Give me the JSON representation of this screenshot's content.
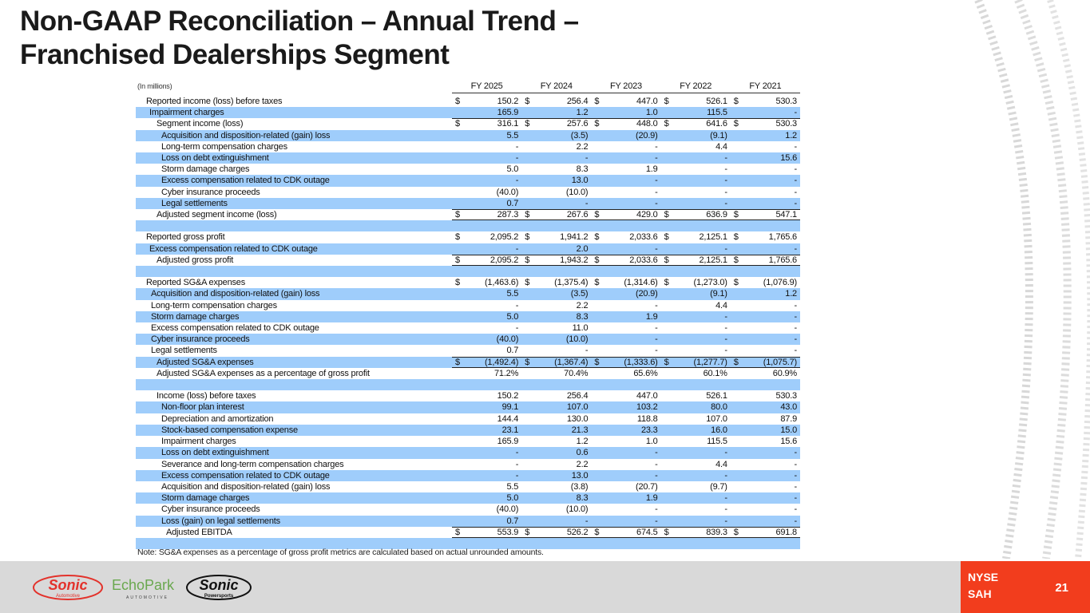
{
  "title_line1": "Non-GAAP Reconciliation – Annual Trend –",
  "title_line2": "Franchised Dealerships Segment",
  "table": {
    "unit_label": "(In millions)",
    "columns": [
      "FY 2025",
      "FY 2024",
      "FY 2023",
      "FY 2022",
      "FY 2021"
    ],
    "rows": [
      {
        "label": "Reported income (loss) before taxes",
        "currency": "$",
        "values": [
          "150.2",
          "256.4",
          "447.0",
          "526.1",
          "530.3"
        ]
      },
      {
        "label": "Impairment charges",
        "currency": "",
        "values": [
          "165.9",
          "1.2",
          "1.0",
          "115.5",
          "-"
        ]
      },
      {
        "label": "Segment income (loss)",
        "currency": "$",
        "values": [
          "316.1",
          "257.6",
          "448.0",
          "641.6",
          "530.3"
        ]
      },
      {
        "label": "Acquisition and disposition-related (gain) loss",
        "currency": "",
        "values": [
          "5.5",
          "(3.5)",
          "(20.9)",
          "(9.1)",
          "1.2"
        ]
      },
      {
        "label": "Long-term compensation charges",
        "currency": "",
        "values": [
          "-",
          "2.2",
          "-",
          "4.4",
          "-"
        ]
      },
      {
        "label": "Loss on debt extinguishment",
        "currency": "",
        "values": [
          "-",
          "-",
          "-",
          "-",
          "15.6"
        ]
      },
      {
        "label": "Storm damage charges",
        "currency": "",
        "values": [
          "5.0",
          "8.3",
          "1.9",
          "-",
          "-"
        ]
      },
      {
        "label": "Excess compensation related to CDK outage",
        "currency": "",
        "values": [
          "-",
          "13.0",
          "-",
          "-",
          "-"
        ]
      },
      {
        "label": "Cyber insurance proceeds",
        "currency": "",
        "values": [
          "(40.0)",
          "(10.0)",
          "-",
          "-",
          "-"
        ]
      },
      {
        "label": "Legal settlements",
        "currency": "",
        "values": [
          "0.7",
          "-",
          "-",
          "-",
          "-"
        ]
      },
      {
        "label": "Adjusted segment income (loss)",
        "currency": "$",
        "values": [
          "287.3",
          "267.6",
          "429.0",
          "636.9",
          "547.1"
        ]
      },
      {
        "label": "",
        "currency": "",
        "values": [
          "",
          "",
          "",
          "",
          ""
        ]
      },
      {
        "label": "Reported gross profit",
        "currency": "$",
        "values": [
          "2,095.2",
          "1,941.2",
          "2,033.6",
          "2,125.1",
          "1,765.6"
        ]
      },
      {
        "label": "Excess compensation related to CDK outage",
        "currency": "",
        "values": [
          "-",
          "2.0",
          "-",
          "-",
          "-"
        ]
      },
      {
        "label": "Adjusted gross profit",
        "currency": "$",
        "values": [
          "2,095.2",
          "1,943.2",
          "2,033.6",
          "2,125.1",
          "1,765.6"
        ]
      },
      {
        "label": "",
        "currency": "",
        "values": [
          "",
          "",
          "",
          "",
          ""
        ]
      },
      {
        "label": "Reported SG&A expenses",
        "currency": "$",
        "values": [
          "(1,463.6)",
          "(1,375.4)",
          "(1,314.6)",
          "(1,273.0)",
          "(1,076.9)"
        ]
      },
      {
        "label": "Acquisition and disposition-related (gain) loss",
        "currency": "",
        "values": [
          "5.5",
          "(3.5)",
          "(20.9)",
          "(9.1)",
          "1.2"
        ]
      },
      {
        "label": "Long-term compensation charges",
        "currency": "",
        "values": [
          "-",
          "2.2",
          "-",
          "4.4",
          "-"
        ]
      },
      {
        "label": "Storm damage charges",
        "currency": "",
        "values": [
          "5.0",
          "8.3",
          "1.9",
          "-",
          "-"
        ]
      },
      {
        "label": "Excess compensation related to CDK outage",
        "currency": "",
        "values": [
          "-",
          "11.0",
          "-",
          "-",
          "-"
        ]
      },
      {
        "label": "Cyber insurance proceeds",
        "currency": "",
        "values": [
          "(40.0)",
          "(10.0)",
          "-",
          "-",
          "-"
        ]
      },
      {
        "label": "Legal settlements",
        "currency": "",
        "values": [
          "0.7",
          "-",
          "-",
          "-",
          "-"
        ]
      },
      {
        "label": "Adjusted SG&A expenses",
        "currency": "$",
        "values": [
          "(1,492.4)",
          "(1,367.4)",
          "(1,333.6)",
          "(1,277.7)",
          "(1,075.7)"
        ]
      },
      {
        "label": "Adjusted SG&A expenses as a percentage of gross profit",
        "currency": "",
        "values": [
          "71.2%",
          "70.4%",
          "65.6%",
          "60.1%",
          "60.9%"
        ]
      },
      {
        "label": "",
        "currency": "",
        "values": [
          "",
          "",
          "",
          "",
          ""
        ]
      },
      {
        "label": "Income (loss) before taxes",
        "currency": "",
        "values": [
          "150.2",
          "256.4",
          "447.0",
          "526.1",
          "530.3"
        ]
      },
      {
        "label": "Non-floor plan interest",
        "currency": "",
        "values": [
          "99.1",
          "107.0",
          "103.2",
          "80.0",
          "43.0"
        ]
      },
      {
        "label": "Depreciation and amortization",
        "currency": "",
        "values": [
          "144.4",
          "130.0",
          "118.8",
          "107.0",
          "87.9"
        ]
      },
      {
        "label": "Stock-based compensation expense",
        "currency": "",
        "values": [
          "23.1",
          "21.3",
          "23.3",
          "16.0",
          "15.0"
        ]
      },
      {
        "label": "Impairment charges",
        "currency": "",
        "values": [
          "165.9",
          "1.2",
          "1.0",
          "115.5",
          "15.6"
        ]
      },
      {
        "label": "Loss on debt extinguishment",
        "currency": "",
        "values": [
          "-",
          "0.6",
          "-",
          "-",
          "-"
        ]
      },
      {
        "label": "Severance and long-term compensation charges",
        "currency": "",
        "values": [
          "-",
          "2.2",
          "-",
          "4.4",
          "-"
        ]
      },
      {
        "label": "Excess compensation related to CDK outage",
        "currency": "",
        "values": [
          "-",
          "13.0",
          "-",
          "-",
          "-"
        ]
      },
      {
        "label": "Acquisition and disposition-related (gain) loss",
        "currency": "",
        "values": [
          "5.5",
          "(3.8)",
          "(20.7)",
          "(9.7)",
          "-"
        ]
      },
      {
        "label": "Storm damage charges",
        "currency": "",
        "values": [
          "5.0",
          "8.3",
          "1.9",
          "-",
          "-"
        ]
      },
      {
        "label": "Cyber insurance proceeds",
        "currency": "",
        "values": [
          "(40.0)",
          "(10.0)",
          "-",
          "-",
          "-"
        ]
      },
      {
        "label": "Loss (gain) on legal settlements",
        "currency": "",
        "values": [
          "0.7",
          "-",
          "-",
          "-",
          "-"
        ]
      },
      {
        "label": "Adjusted EBITDA",
        "currency": "$",
        "values": [
          "553.9",
          "526.2",
          "674.5",
          "839.3",
          "691.8"
        ]
      },
      {
        "label": "",
        "currency": "",
        "values": [
          "",
          "",
          "",
          "",
          ""
        ]
      }
    ]
  },
  "note": "Note: SG&A expenses as a percentage of gross profit metrics are calculated based on actual unrounded amounts.",
  "footer": {
    "logos": [
      "Sonic Automotive",
      "EchoPark Automotive",
      "Sonic Powersports"
    ],
    "exchange_line1": "NYSE",
    "exchange_line2": "SAH",
    "page_number": "21"
  },
  "colors": {
    "row_highlight": "#9fcdfb",
    "badge": "#f23d1d",
    "footer": "#d9d9d9"
  }
}
